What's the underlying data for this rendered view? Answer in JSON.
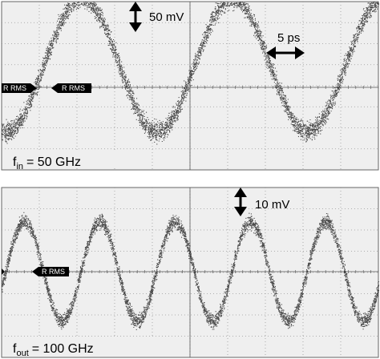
{
  "chart_data": [
    {
      "type": "line",
      "title": "",
      "xlabel": "",
      "ylabel": "",
      "grid": true,
      "x_unit": "ps",
      "y_unit": "mV",
      "annotations": {
        "frequency_symbol": "f",
        "frequency_subscript": "in",
        "frequency_value": "= 50 GHz",
        "vertical_scale": "50 mV",
        "horizontal_scale": "5 ps",
        "reference_markers": [
          "R RMS",
          "R RMS"
        ]
      },
      "series": [
        {
          "frequency_ghz": 50,
          "amplitude_mv": 75,
          "offset_mv": 25,
          "x_range_ps": [
            0,
            50
          ],
          "peaks_ps": [
            10.6,
            30.6
          ],
          "troughs_ps": [
            0.6,
            20.6,
            40.6
          ]
        }
      ]
    },
    {
      "type": "line",
      "title": "",
      "xlabel": "",
      "ylabel": "",
      "grid": true,
      "x_unit": "ps",
      "y_unit": "mV",
      "annotations": {
        "frequency_symbol": "f",
        "frequency_subscript": "out",
        "frequency_value": "= 100 GHz",
        "vertical_scale": "10 mV",
        "reference_markers": [
          "R RMS"
        ]
      },
      "series": [
        {
          "frequency_ghz": 100,
          "amplitude_mv": 17,
          "offset_mv": 0,
          "x_range_ps": [
            0,
            50
          ],
          "peaks_ps": [
            3.0,
            13.0,
            23.0,
            33.0,
            43.0
          ],
          "troughs_ps": [
            8.0,
            18.0,
            28.0,
            38.0,
            48.0
          ]
        }
      ]
    }
  ]
}
